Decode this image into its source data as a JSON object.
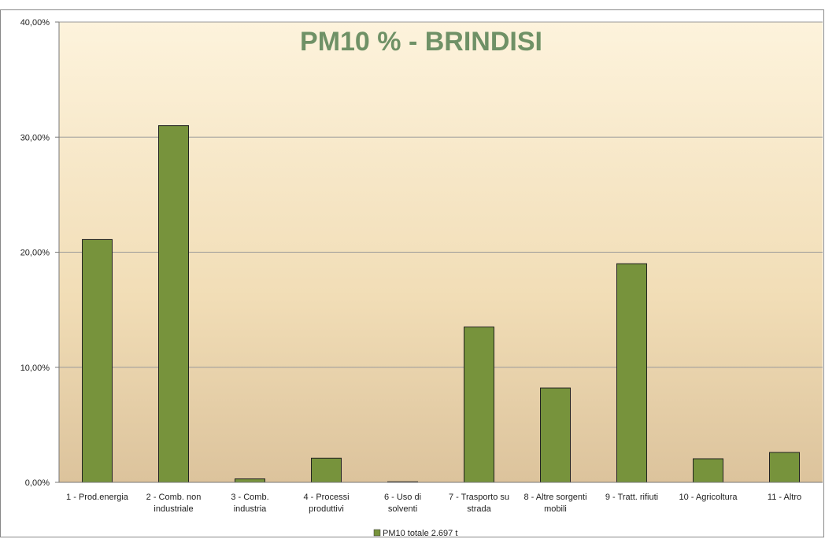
{
  "chart_data": {
    "type": "bar",
    "title": "PM10 %  - BRINDISI",
    "categories": [
      "1 - Prod.energia",
      "2 - Comb. non industriale",
      "3 - Comb. industria",
      "4 - Processi produttivi",
      "6 - Uso di solventi",
      "7 - Trasporto su strada",
      "8 - Altre sorgenti mobili",
      "9 - Tratt. rifiuti",
      "10 - Agricoltura",
      "11 - Altro"
    ],
    "series": [
      {
        "name": "PM10 totale 2.697 t",
        "color": "#77933c",
        "values": [
          21.1,
          31.0,
          0.3,
          2.1,
          0.05,
          13.5,
          8.2,
          19.0,
          2.05,
          2.6
        ]
      }
    ],
    "ylim": [
      0,
      40
    ],
    "yticks": [
      {
        "value": 0,
        "label": "0,00%"
      },
      {
        "value": 10,
        "label": "10,00%"
      },
      {
        "value": 20,
        "label": "20,00%"
      },
      {
        "value": 30,
        "label": "30,00%"
      },
      {
        "value": 40,
        "label": "40,00%"
      }
    ],
    "grid": true,
    "legend": "bottom"
  }
}
